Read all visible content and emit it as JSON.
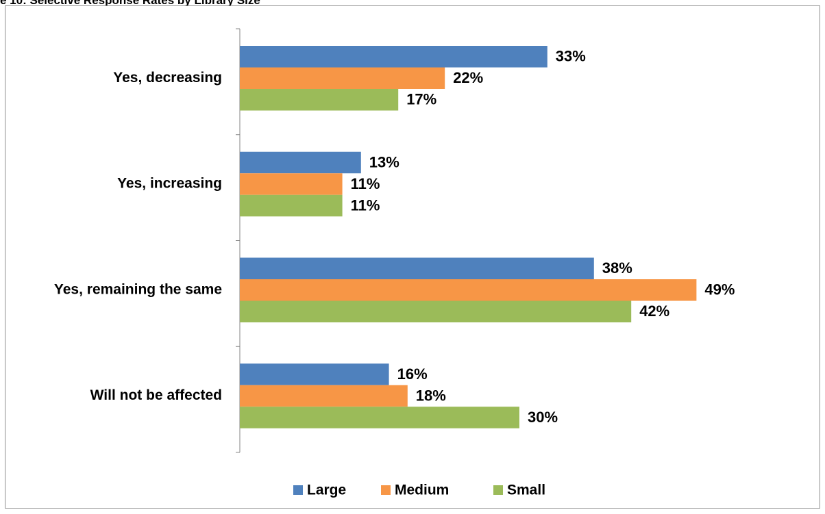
{
  "caption": "e 10: Selective Response Rates by Library Size",
  "chart_data": {
    "type": "bar",
    "orientation": "horizontal",
    "title": "",
    "xlabel": "",
    "ylabel": "",
    "categories": [
      "Yes, decreasing",
      "Yes, increasing",
      "Yes, remaining the same",
      "Will not be affected"
    ],
    "series": [
      {
        "name": "Large",
        "color": "#4f81bd",
        "values": [
          33,
          13,
          38,
          16
        ],
        "labels": [
          "33%",
          "13%",
          "38%",
          "16%"
        ]
      },
      {
        "name": "Medium",
        "color": "#f79646",
        "values": [
          22,
          11,
          49,
          18
        ],
        "labels": [
          "22%",
          "11%",
          "49%",
          "18%"
        ]
      },
      {
        "name": "Small",
        "color": "#9bbb59",
        "values": [
          17,
          11,
          42,
          30
        ],
        "labels": [
          "17%",
          "11%",
          "42%",
          "30%"
        ]
      }
    ],
    "xlim": [
      0,
      50
    ],
    "grid": false,
    "legend": "bottom"
  }
}
